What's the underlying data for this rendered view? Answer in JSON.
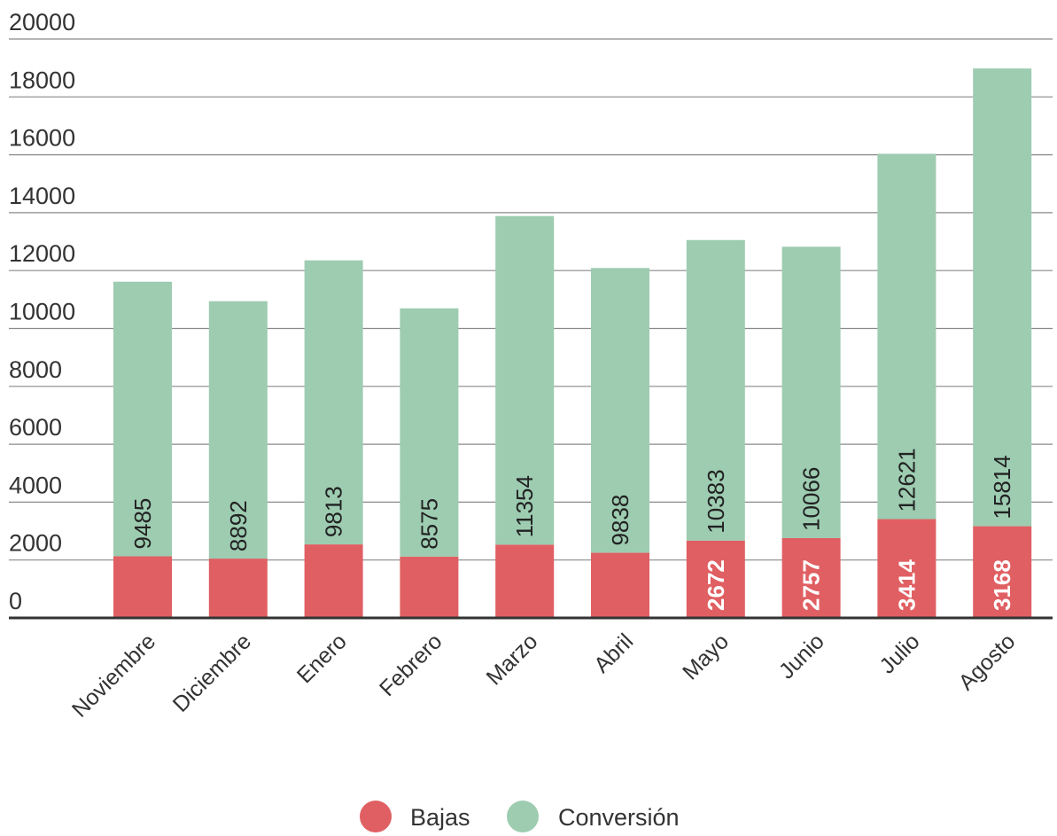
{
  "chart_data": {
    "type": "bar",
    "stacked": true,
    "categories": [
      "Noviembre",
      "Diciembre",
      "Enero",
      "Febrero",
      "Marzo",
      "Abril",
      "Mayo",
      "Junio",
      "Julio",
      "Agosto"
    ],
    "series": [
      {
        "name": "Bajas",
        "color": "#e05f62",
        "values": [
          2130,
          2050,
          2540,
          2120,
          2530,
          2250,
          2672,
          2757,
          3414,
          3168
        ],
        "labels": [
          "",
          "",
          "",
          "",
          "",
          "",
          "2672",
          "2757",
          "3414",
          "3168"
        ]
      },
      {
        "name": "Conversión",
        "color": "#9dccb1",
        "values": [
          9485,
          8892,
          9813,
          8575,
          11354,
          9838,
          10383,
          10066,
          12621,
          15814
        ],
        "labels": [
          "9485",
          "8892",
          "9813",
          "8575",
          "11354",
          "9838",
          "10383",
          "10066",
          "12621",
          "15814"
        ]
      }
    ],
    "ylim": [
      0,
      20000
    ],
    "yticks": [
      0,
      2000,
      4000,
      6000,
      8000,
      10000,
      12000,
      14000,
      16000,
      18000,
      20000
    ],
    "ytick_labels": [
      "0",
      "2000",
      "4000",
      "6000",
      "8000",
      "10000",
      "12000",
      "14000",
      "16000",
      "18000",
      "20000"
    ],
    "grid": true,
    "legend_position": "bottom-center",
    "title": "",
    "xlabel": "",
    "ylabel": ""
  }
}
